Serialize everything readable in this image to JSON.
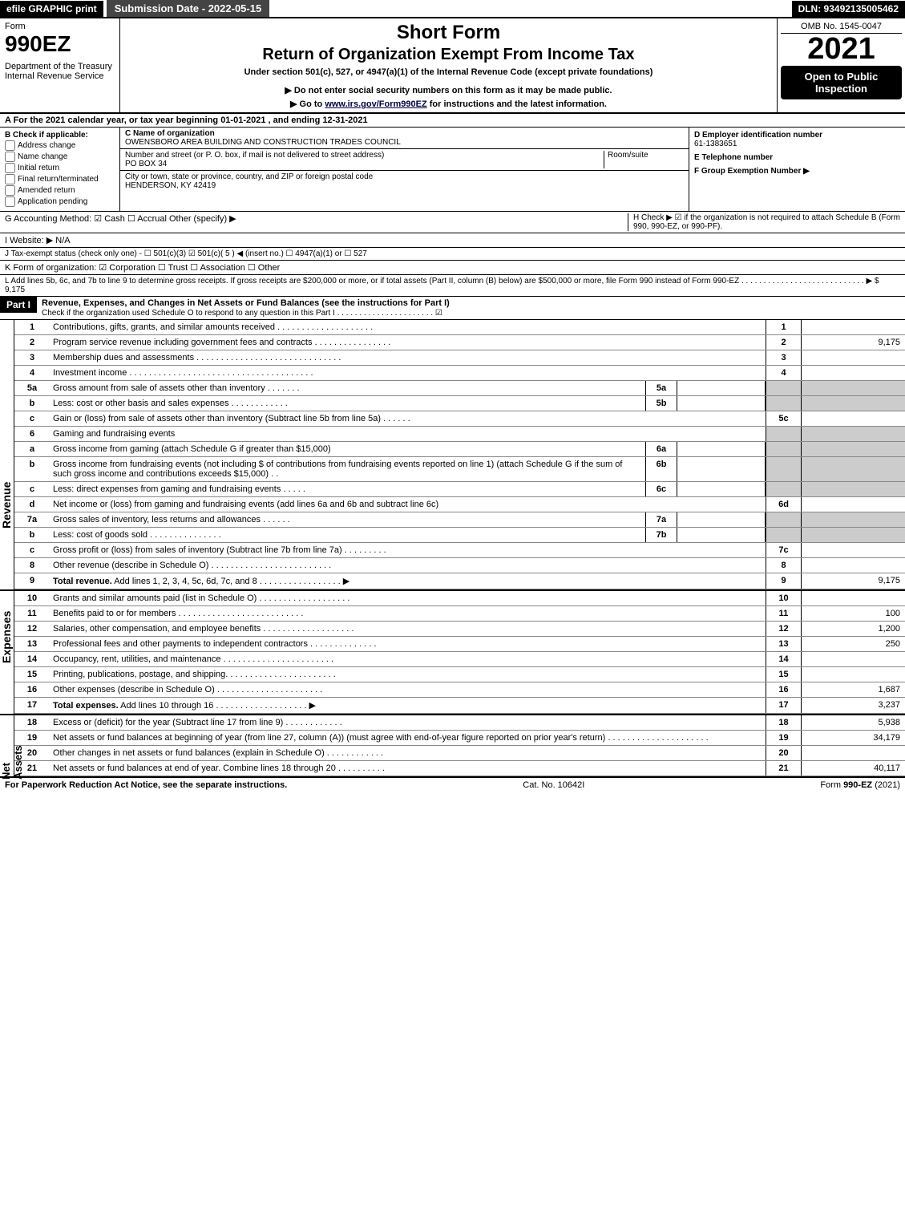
{
  "top_bar": {
    "efile": "efile GRAPHIC print",
    "submission": "Submission Date - 2022-05-15",
    "dln": "DLN: 93492135005462"
  },
  "header": {
    "form_label": "Form",
    "form_no": "990EZ",
    "dept": "Department of the Treasury",
    "irs": "Internal Revenue Service",
    "short_form": "Short Form",
    "title": "Return of Organization Exempt From Income Tax",
    "under": "Under section 501(c), 527, or 4947(a)(1) of the Internal Revenue Code (except private foundations)",
    "ssn_note": "▶ Do not enter social security numbers on this form as it may be made public.",
    "goto": "▶ Go to www.irs.gov/Form990EZ for instructions and the latest information.",
    "omb": "OMB No. 1545-0047",
    "year": "2021",
    "open": "Open to Public Inspection"
  },
  "section_a": "A  For the 2021 calendar year, or tax year beginning 01-01-2021 , and ending 12-31-2021",
  "section_b": {
    "title": "B  Check if applicable:",
    "opts": [
      "Address change",
      "Name change",
      "Initial return",
      "Final return/terminated",
      "Amended return",
      "Application pending"
    ]
  },
  "section_c": {
    "label": "C Name of organization",
    "name": "OWENSBORO AREA BUILDING AND CONSTRUCTION TRADES COUNCIL",
    "street_label": "Number and street (or P. O. box, if mail is not delivered to street address)",
    "room_label": "Room/suite",
    "street": "PO BOX 34",
    "city_label": "City or town, state or province, country, and ZIP or foreign postal code",
    "city": "HENDERSON, KY  42419"
  },
  "section_d": {
    "ein_label": "D Employer identification number",
    "ein": "61-1383651",
    "tel_label": "E Telephone number",
    "tel": "",
    "grp_label": "F Group Exemption Number   ▶",
    "grp": ""
  },
  "section_g": "G Accounting Method:   ☑ Cash   ☐ Accrual   Other (specify) ▶",
  "section_h": "H   Check ▶  ☑  if the organization is not required to attach Schedule B (Form 990, 990-EZ, or 990-PF).",
  "section_i": "I Website: ▶ N/A",
  "section_j": "J Tax-exempt status (check only one) -  ☐ 501(c)(3)  ☑ 501(c)( 5 ) ◀ (insert no.)  ☐ 4947(a)(1) or  ☐ 527",
  "section_k": "K Form of organization:   ☑ Corporation   ☐ Trust   ☐ Association   ☐ Other",
  "section_l": "L Add lines 5b, 6c, and 7b to line 9 to determine gross receipts. If gross receipts are $200,000 or more, or if total assets (Part II, column (B) below) are $500,000 or more, file Form 990 instead of Form 990-EZ  .  .  .  .  .  .  .  .  .  .  .  .  .  .  .  .  .  .  .  .  .  .  .  .  .  .  .  .  ▶ $ 9,175",
  "part1": {
    "header": "Part I",
    "title": "Revenue, Expenses, and Changes in Net Assets or Fund Balances (see the instructions for Part I)",
    "check_note": "Check if the organization used Schedule O to respond to any question in this Part I  .  .  .  .  .  .  .  .  .  .  .  .  .  .  .  .  .  .  .  .  .  .  ☑"
  },
  "rev_lines": [
    {
      "no": "1",
      "desc": "Contributions, gifts, grants, and similar amounts received  .  .  .  .  .  .  .  .  .  .  .  .  .  .  .  .  .  .  .  .",
      "lbl": "1",
      "val": ""
    },
    {
      "no": "2",
      "desc": "Program service revenue including government fees and contracts  .  .  .  .  .  .  .  .  .  .  .  .  .  .  .  .",
      "lbl": "2",
      "val": "9,175"
    },
    {
      "no": "3",
      "desc": "Membership dues and assessments  .  .  .  .  .  .  .  .  .  .  .  .  .  .  .  .  .  .  .  .  .  .  .  .  .  .  .  .  .  .",
      "lbl": "3",
      "val": ""
    },
    {
      "no": "4",
      "desc": "Investment income  .  .  .  .  .  .  .  .  .  .  .  .  .  .  .  .  .  .  .  .  .  .  .  .  .  .  .  .  .  .  .  .  .  .  .  .  .  .",
      "lbl": "4",
      "val": ""
    }
  ],
  "rev_sub_5": [
    {
      "no": "5a",
      "desc": "Gross amount from sale of assets other than inventory  .  .  .  .  .  .  .",
      "slbl": "5a",
      "sval": ""
    },
    {
      "no": "b",
      "desc": "Less: cost or other basis and sales expenses  .  .  .  .  .  .  .  .  .  .  .  .",
      "slbl": "5b",
      "sval": ""
    }
  ],
  "rev_5c": {
    "no": "c",
    "desc": "Gain or (loss) from sale of assets other than inventory (Subtract line 5b from line 5a)  .  .  .  .  .  .",
    "lbl": "5c",
    "val": ""
  },
  "rev_6": {
    "no": "6",
    "desc": "Gaming and fundraising events"
  },
  "rev_sub_6": [
    {
      "no": "a",
      "desc": "Gross income from gaming (attach Schedule G if greater than $15,000)",
      "slbl": "6a",
      "sval": ""
    },
    {
      "no": "b",
      "desc": "Gross income from fundraising events (not including $                  of contributions from fundraising events reported on line 1) (attach Schedule G if the sum of such gross income and contributions exceeds $15,000)   .   .",
      "slbl": "6b",
      "sval": ""
    },
    {
      "no": "c",
      "desc": "Less: direct expenses from gaming and fundraising events  .  .  .  .  .",
      "slbl": "6c",
      "sval": ""
    }
  ],
  "rev_6d": {
    "no": "d",
    "desc": "Net income or (loss) from gaming and fundraising events (add lines 6a and 6b and subtract line 6c)",
    "lbl": "6d",
    "val": ""
  },
  "rev_sub_7": [
    {
      "no": "7a",
      "desc": "Gross sales of inventory, less returns and allowances  .  .  .  .  .  .",
      "slbl": "7a",
      "sval": ""
    },
    {
      "no": "b",
      "desc": "Less: cost of goods sold      .  .  .  .  .  .  .  .  .  .  .  .  .  .  .",
      "slbl": "7b",
      "sval": ""
    }
  ],
  "rev_7c": {
    "no": "c",
    "desc": "Gross profit or (loss) from sales of inventory (Subtract line 7b from line 7a)  .  .  .  .  .  .  .  .  .",
    "lbl": "7c",
    "val": ""
  },
  "rev_8": {
    "no": "8",
    "desc": "Other revenue (describe in Schedule O)  .  .  .  .  .  .  .  .  .  .  .  .  .  .  .  .  .  .  .  .  .  .  .  .  .",
    "lbl": "8",
    "val": ""
  },
  "rev_9": {
    "no": "9",
    "desc": "Total revenue. Add lines 1, 2, 3, 4, 5c, 6d, 7c, and 8  .  .  .  .  .  .  .  .  .  .  .  .  .  .  .  .  .  ▶",
    "lbl": "9",
    "val": "9,175"
  },
  "exp_lines": [
    {
      "no": "10",
      "desc": "Grants and similar amounts paid (list in Schedule O)  .  .  .  .  .  .  .  .  .  .  .  .  .  .  .  .  .  .  .",
      "lbl": "10",
      "val": ""
    },
    {
      "no": "11",
      "desc": "Benefits paid to or for members    .  .  .  .  .  .  .  .  .  .  .  .  .  .  .  .  .  .  .  .  .  .  .  .  .  .",
      "lbl": "11",
      "val": "100"
    },
    {
      "no": "12",
      "desc": "Salaries, other compensation, and employee benefits  .  .  .  .  .  .  .  .  .  .  .  .  .  .  .  .  .  .  .",
      "lbl": "12",
      "val": "1,200"
    },
    {
      "no": "13",
      "desc": "Professional fees and other payments to independent contractors  .  .  .  .  .  .  .  .  .  .  .  .  .  .",
      "lbl": "13",
      "val": "250"
    },
    {
      "no": "14",
      "desc": "Occupancy, rent, utilities, and maintenance .  .  .  .  .  .  .  .  .  .  .  .  .  .  .  .  .  .  .  .  .  .  .",
      "lbl": "14",
      "val": ""
    },
    {
      "no": "15",
      "desc": "Printing, publications, postage, and shipping.  .  .  .  .  .  .  .  .  .  .  .  .  .  .  .  .  .  .  .  .  .  .",
      "lbl": "15",
      "val": ""
    },
    {
      "no": "16",
      "desc": "Other expenses (describe in Schedule O)    .  .  .  .  .  .  .  .  .  .  .  .  .  .  .  .  .  .  .  .  .  .",
      "lbl": "16",
      "val": "1,687"
    },
    {
      "no": "17",
      "desc": "Total expenses. Add lines 10 through 16    .  .  .  .  .  .  .  .  .  .  .  .  .  .  .  .  .  .  .  ▶",
      "lbl": "17",
      "val": "3,237"
    }
  ],
  "na_lines": [
    {
      "no": "18",
      "desc": "Excess or (deficit) for the year (Subtract line 17 from line 9)      .  .  .  .  .  .  .  .  .  .  .  .",
      "lbl": "18",
      "val": "5,938"
    },
    {
      "no": "19",
      "desc": "Net assets or fund balances at beginning of year (from line 27, column (A)) (must agree with end-of-year figure reported on prior year's return) .  .  .  .  .  .  .  .  .  .  .  .  .  .  .  .  .  .  .  .  .",
      "lbl": "19",
      "val": "34,179"
    },
    {
      "no": "20",
      "desc": "Other changes in net assets or fund balances (explain in Schedule O)  .  .  .  .  .  .  .  .  .  .  .  .",
      "lbl": "20",
      "val": ""
    },
    {
      "no": "21",
      "desc": "Net assets or fund balances at end of year. Combine lines 18 through 20 .  .  .  .  .  .  .  .  .  .",
      "lbl": "21",
      "val": "40,117"
    }
  ],
  "side_labels": {
    "revenue": "Revenue",
    "expenses": "Expenses",
    "netassets": "Net Assets"
  },
  "footer": {
    "left": "For Paperwork Reduction Act Notice, see the separate instructions.",
    "mid": "Cat. No. 10642I",
    "right": "Form 990-EZ (2021)"
  }
}
